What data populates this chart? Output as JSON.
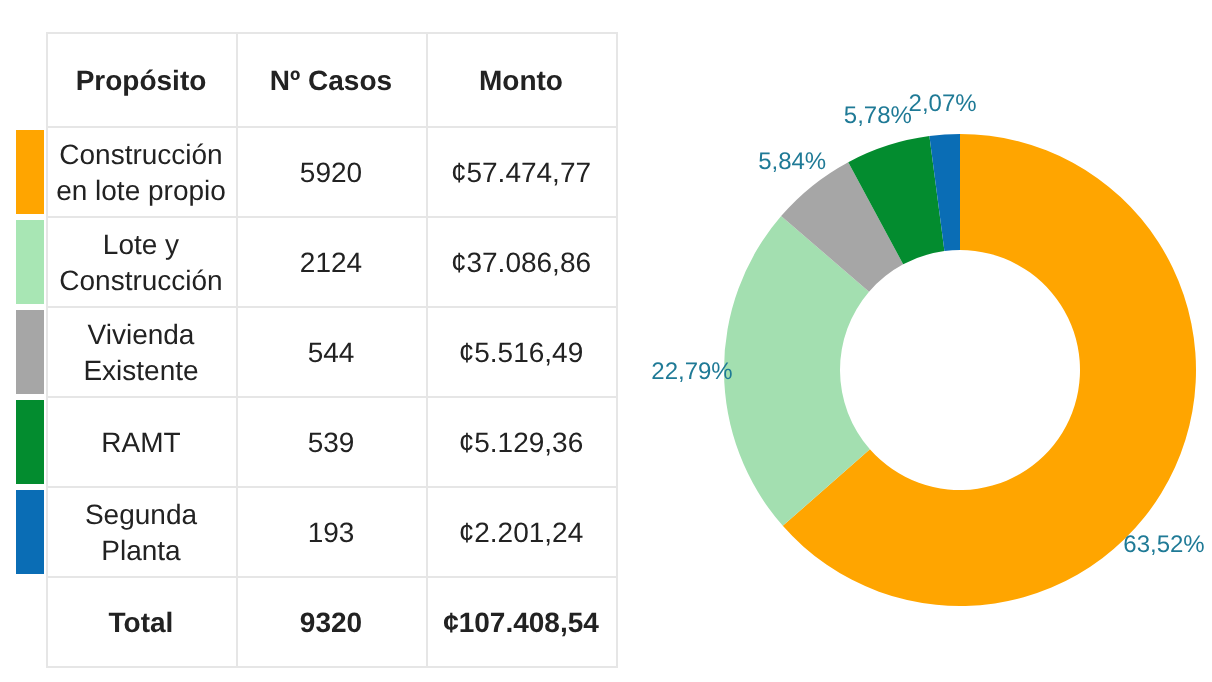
{
  "chart_data": [
    {
      "type": "other",
      "legend_title": "Propósito",
      "categories": [
        "Construcción en lote propio",
        "Lote y Construcción",
        "Vivienda Existente",
        "RAMT",
        "Segunda Planta"
      ],
      "colors": [
        "#ffa500",
        "#a8e6b4",
        "#a6a6a6",
        "#038c2f",
        "#0a6db5"
      ],
      "series": [
        {
          "name": "Nº Casos",
          "values": [
            5920,
            2124,
            544,
            539,
            193
          ],
          "value_labels": [
            "5920",
            "2124",
            "544",
            "539",
            "193"
          ]
        },
        {
          "name": "Monto",
          "values": [
            57474.77,
            37086.86,
            5516.49,
            5129.36,
            2201.24
          ],
          "value_labels": [
            "¢57.474,77",
            "¢37.086,86",
            "¢5.516,49",
            "¢5.129,36",
            "¢2.201,24"
          ]
        }
      ],
      "annotations": [
        "Total"
      ],
      "totals": [
        "9320",
        "¢107.408,54"
      ]
    },
    {
      "type": "donut",
      "categories": [
        null,
        null,
        null,
        null,
        null
      ],
      "values": [
        63.52,
        22.79,
        5.84,
        5.78,
        2.07
      ],
      "colors": [
        "#ffa500",
        "#a3dfb0",
        "#a6a6a6",
        "#038c2f",
        "#0a6db5"
      ],
      "value_labels": [
        "63,52%",
        "22,79%",
        "5,84%",
        "5,78%",
        "2,07%"
      ],
      "legend": false
    }
  ]
}
